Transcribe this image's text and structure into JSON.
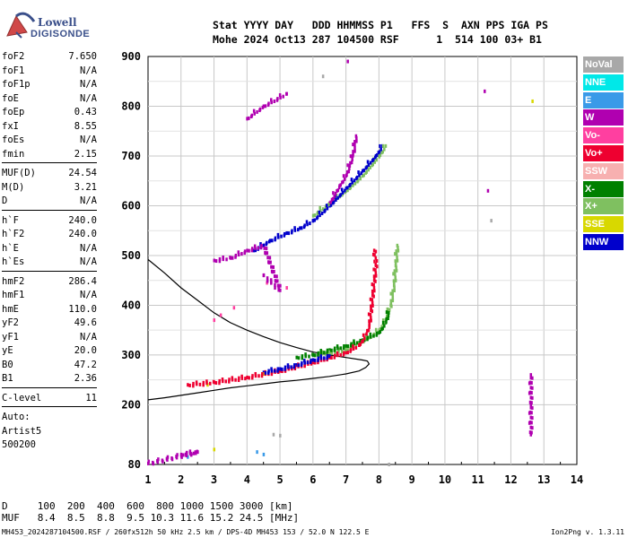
{
  "logo": {
    "line1": "Lowell",
    "line2": "DIGISONDE"
  },
  "header": {
    "labels": "Stat YYYY DAY   DDD HHMMSS P1   FFS  S  AXN PPS IGA PS",
    "values": "Mohe 2024 Oct13 287 104500 RSF      1  514 100 03+ B1"
  },
  "params": {
    "group1": [
      {
        "name": "foF2",
        "value": "7.650"
      },
      {
        "name": "foF1",
        "value": "N/A"
      },
      {
        "name": "foF1p",
        "value": "N/A"
      },
      {
        "name": "foE",
        "value": "N/A"
      },
      {
        "name": "foEp",
        "value": "0.43"
      },
      {
        "name": "fxI",
        "value": "8.55"
      },
      {
        "name": "foEs",
        "value": "N/A"
      },
      {
        "name": "fmin",
        "value": "2.15"
      }
    ],
    "group2": [
      {
        "name": "MUF(D)",
        "value": "24.54"
      },
      {
        "name": "M(D)",
        "value": "3.21"
      },
      {
        "name": "D",
        "value": "N/A"
      }
    ],
    "group3": [
      {
        "name": "h`F",
        "value": "240.0"
      },
      {
        "name": "h`F2",
        "value": "240.0"
      },
      {
        "name": "h`E",
        "value": "N/A"
      },
      {
        "name": "h`Es",
        "value": "N/A"
      }
    ],
    "group4": [
      {
        "name": "hmF2",
        "value": "286.4"
      },
      {
        "name": "hmF1",
        "value": "N/A"
      },
      {
        "name": "hmE",
        "value": "110.0"
      },
      {
        "name": "yF2",
        "value": "49.6"
      },
      {
        "name": "yF1",
        "value": "N/A"
      },
      {
        "name": "yE",
        "value": "20.0"
      },
      {
        "name": "B0",
        "value": "47.2"
      },
      {
        "name": "B1",
        "value": "2.36"
      }
    ],
    "group5": [
      {
        "name": "C-level",
        "value": "11"
      }
    ],
    "group6": [
      {
        "name": "Auto:",
        "value": ""
      },
      {
        "name": "Artist5",
        "value": ""
      },
      {
        "name": "500200",
        "value": ""
      }
    ]
  },
  "legend": [
    {
      "label": "NoVal",
      "color": "#a8a8a8"
    },
    {
      "label": "NNE",
      "color": "#00e8e8"
    },
    {
      "label": "E",
      "color": "#3a9ae8"
    },
    {
      "label": "W",
      "color": "#b000b0"
    },
    {
      "label": "Vo-",
      "color": "#ff3fa0"
    },
    {
      "label": "Vo+",
      "color": "#ee0030"
    },
    {
      "label": "SSW",
      "color": "#f7b0b0"
    },
    {
      "label": "X-",
      "color": "#008000"
    },
    {
      "label": "X+",
      "color": "#7fc060"
    },
    {
      "label": "SSE",
      "color": "#d8d800"
    },
    {
      "label": "NNW",
      "color": "#0000cc"
    }
  ],
  "bottom": {
    "d_line": "D     100  200  400  600  800 1000 1500 3000 [km]",
    "muf_line": "MUF   8.4  8.5  8.8  9.5 10.3 11.6 15.2 24.5 [MHz]"
  },
  "footer": {
    "left": "MH453_2024287104500.RSF / 260fx512h 50 kHz 2.5 km / DPS-4D MH453 153 / 52.0 N 122.5 E",
    "right": "Ion2Png v. 1.3.11"
  },
  "chart_data": {
    "type": "scatter",
    "xlim": [
      1,
      14
    ],
    "ylim": [
      80,
      900
    ],
    "x_ticks": [
      1,
      2,
      3,
      4,
      5,
      6,
      7,
      8,
      9,
      10,
      11,
      12,
      13,
      14
    ],
    "y_ticks": [
      80,
      200,
      300,
      400,
      500,
      600,
      700,
      800,
      900
    ],
    "grid": true,
    "series": [
      {
        "name": "X+",
        "color": "#7fc060",
        "points": [
          [
            6.0,
            300
          ],
          [
            6.5,
            305
          ],
          [
            7.0,
            310
          ],
          [
            7.4,
            325
          ],
          [
            7.7,
            335
          ],
          [
            8.0,
            350
          ],
          [
            8.2,
            370
          ],
          [
            8.35,
            400
          ],
          [
            8.45,
            440
          ],
          [
            8.5,
            480
          ],
          [
            8.55,
            520
          ],
          [
            6.0,
            580
          ],
          [
            6.5,
            605
          ],
          [
            7.0,
            630
          ],
          [
            7.5,
            660
          ],
          [
            8.0,
            700
          ],
          [
            8.2,
            720
          ]
        ]
      },
      {
        "name": "X-",
        "color": "#008000",
        "points": [
          [
            5.5,
            295
          ],
          [
            6.0,
            300
          ],
          [
            6.5,
            310
          ],
          [
            7.0,
            318
          ],
          [
            7.5,
            330
          ],
          [
            8.0,
            345
          ],
          [
            8.2,
            365
          ],
          [
            8.3,
            390
          ]
        ]
      },
      {
        "name": "Vo+",
        "color": "#ee0030",
        "points": [
          [
            2.2,
            240
          ],
          [
            3.0,
            245
          ],
          [
            4.0,
            255
          ],
          [
            5.0,
            268
          ],
          [
            6.0,
            285
          ],
          [
            6.5,
            295
          ],
          [
            7.0,
            305
          ],
          [
            7.4,
            320
          ],
          [
            7.6,
            340
          ],
          [
            7.7,
            360
          ],
          [
            7.75,
            390
          ],
          [
            7.8,
            420
          ],
          [
            7.85,
            450
          ],
          [
            7.9,
            480
          ],
          [
            7.85,
            510
          ]
        ]
      },
      {
        "name": "NNW",
        "color": "#0000cc",
        "points": [
          [
            4.5,
            265
          ],
          [
            5.0,
            272
          ],
          [
            5.5,
            280
          ],
          [
            6.0,
            290
          ],
          [
            6.5,
            298
          ],
          [
            4.2,
            510
          ],
          [
            4.7,
            530
          ],
          [
            5.2,
            545
          ],
          [
            5.6,
            555
          ],
          [
            6.0,
            570
          ],
          [
            6.5,
            600
          ],
          [
            7.0,
            635
          ],
          [
            7.5,
            670
          ],
          [
            7.9,
            700
          ],
          [
            8.1,
            720
          ]
        ]
      },
      {
        "name": "W",
        "color": "#b000b0",
        "points": [
          [
            3.0,
            490
          ],
          [
            3.5,
            495
          ],
          [
            4.0,
            510
          ],
          [
            4.5,
            520
          ],
          [
            5.0,
            430
          ],
          [
            4.5,
            460
          ],
          [
            6.5,
            605
          ],
          [
            6.8,
            640
          ],
          [
            7.0,
            660
          ],
          [
            7.2,
            700
          ],
          [
            7.3,
            740
          ],
          [
            4.0,
            775
          ],
          [
            4.5,
            800
          ],
          [
            5.2,
            825
          ],
          [
            7.05,
            890
          ],
          [
            11.2,
            830
          ],
          [
            11.3,
            630
          ],
          [
            12.6,
            260
          ],
          [
            12.6,
            200
          ],
          [
            12.6,
            140
          ],
          [
            2.0,
            100
          ],
          [
            2.5,
            105
          ],
          [
            1.0,
            82
          ]
        ]
      },
      {
        "name": "Vo-",
        "color": "#ff3fa0",
        "points": [
          [
            3.0,
            370
          ],
          [
            3.2,
            380
          ],
          [
            3.6,
            395
          ],
          [
            5.2,
            435
          ],
          [
            4.6,
            445
          ]
        ]
      },
      {
        "name": "SSE",
        "color": "#d8d800",
        "points": [
          [
            2.8,
            240
          ],
          [
            4.5,
            262
          ],
          [
            12.65,
            810
          ],
          [
            3.0,
            110
          ]
        ]
      },
      {
        "name": "NoVal",
        "color": "#a8a8a8",
        "points": [
          [
            4.8,
            140
          ],
          [
            5.0,
            138
          ],
          [
            8.3,
            80
          ],
          [
            6.3,
            860
          ],
          [
            11.4,
            570
          ]
        ]
      },
      {
        "name": "E",
        "color": "#3a9ae8",
        "points": [
          [
            4.5,
            100
          ],
          [
            2.2,
            95
          ],
          [
            4.3,
            105
          ]
        ]
      }
    ],
    "profile_curve": [
      [
        1.0,
        492
      ],
      [
        1.5,
        465
      ],
      [
        2.0,
        435
      ],
      [
        2.5,
        410
      ],
      [
        3.0,
        385
      ],
      [
        3.5,
        365
      ],
      [
        4.0,
        350
      ],
      [
        4.5,
        337
      ],
      [
        5.0,
        325
      ],
      [
        5.5,
        315
      ],
      [
        6.0,
        306
      ],
      [
        6.5,
        300
      ],
      [
        7.0,
        295
      ],
      [
        7.5,
        290
      ],
      [
        7.65,
        288
      ],
      [
        7.7,
        282
      ],
      [
        7.6,
        275
      ],
      [
        7.4,
        268
      ],
      [
        7.0,
        262
      ],
      [
        6.5,
        257
      ],
      [
        6.0,
        253
      ],
      [
        5.5,
        249
      ],
      [
        5.0,
        246
      ],
      [
        4.5,
        242
      ],
      [
        4.0,
        238
      ],
      [
        3.5,
        234
      ],
      [
        3.0,
        229
      ],
      [
        2.5,
        224
      ],
      [
        2.0,
        219
      ],
      [
        1.5,
        214
      ],
      [
        1.0,
        210
      ]
    ]
  }
}
